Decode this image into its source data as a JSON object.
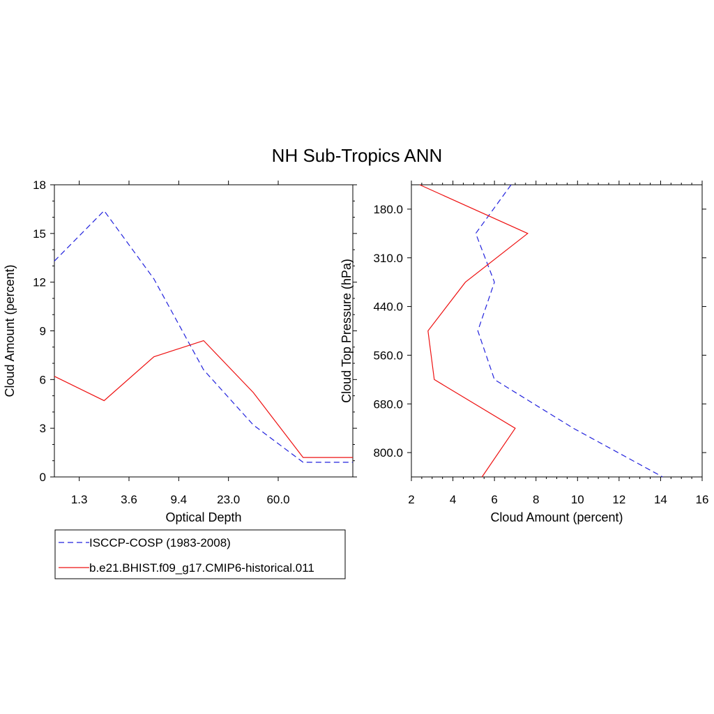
{
  "title": "NH Sub-Tropics ANN",
  "colors": {
    "obs": "#2222dd",
    "model": "#ee1111"
  },
  "legend": [
    {
      "label": "ISCCP-COSP (1983-2008)",
      "style": "dashed",
      "color": "#2222dd"
    },
    {
      "label": "b.e21.BHIST.f09_g17.CMIP6-historical.011",
      "style": "solid",
      "color": "#ee1111"
    }
  ],
  "chart_data": [
    {
      "type": "line",
      "xlabel": "Optical Depth",
      "ylabel": "Cloud Amount (percent)",
      "x": [
        0,
        1,
        2,
        3,
        4,
        5
      ],
      "xlim": [
        -0.5,
        5.5
      ],
      "xtick_labels": [
        "1.3",
        "3.6",
        "9.4",
        "23.0",
        "60.0"
      ],
      "xtick_positions": [
        0,
        1,
        2,
        3,
        4
      ],
      "ylim": [
        0,
        18
      ],
      "yticks": [
        0,
        3,
        6,
        9,
        12,
        15,
        18
      ],
      "series": [
        {
          "name": "ISCCP-COSP (1983-2008)",
          "values": [
            16.4,
            12.2,
            6.6,
            3.2,
            0.9,
            0.9
          ]
        },
        {
          "name": "b.e21.BHIST.f09_g17.CMIP6-historical.011",
          "values": [
            4.7,
            7.4,
            8.4,
            5.2,
            1.2,
            1.2
          ]
        }
      ],
      "left_edge_values": [
        13.3,
        6.2
      ]
    },
    {
      "type": "line",
      "xlabel": "Cloud Amount (percent)",
      "ylabel": "Cloud Top Pressure (hPa)",
      "xlim": [
        2,
        16
      ],
      "xticks": [
        2,
        4,
        6,
        8,
        10,
        12,
        14,
        16
      ],
      "ytick_labels": [
        "180.0",
        "310.0",
        "440.0",
        "560.0",
        "680.0",
        "800.0"
      ],
      "ylevels": [
        0,
        1,
        2,
        3,
        4,
        5,
        6
      ],
      "series": [
        {
          "name": "ISCCP-COSP (1983-2008)",
          "values": [
            6.8,
            5.1,
            6.0,
            5.2,
            6.0,
            9.8,
            14.1
          ]
        },
        {
          "name": "b.e21.BHIST.f09_g17.CMIP6-historical.011",
          "values": [
            2.4,
            7.6,
            4.6,
            2.8,
            3.1,
            7.0,
            5.4
          ]
        }
      ]
    }
  ]
}
